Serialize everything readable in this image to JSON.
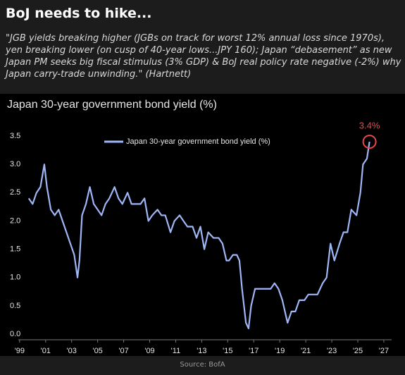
{
  "header": {
    "title": "BoJ needs to hike...",
    "quote": "\"JGB yields breaking higher (JGBs on track for worst 12% annual loss since 1970s), yen breaking lower (on cusp of 40-year lows...JPY 160); Japan “debasement” as new Japan PM seeks big fiscal stimulus (3% GDP) & BoJ real policy rate negative (-2%) why Japan carry-trade unwinding.\" (Hartnett)"
  },
  "source": "Source: BofA",
  "chart_data": {
    "type": "line",
    "title": "Japan 30-year government bond yield (%)",
    "annotation": "3.4%",
    "x": [
      1999.7,
      2000.0,
      2000.3,
      2000.6,
      2000.9,
      2001.1,
      2001.4,
      2001.7,
      2002.0,
      2002.3,
      2002.6,
      2002.9,
      2003.2,
      2003.45,
      2003.6,
      2003.8,
      2004.1,
      2004.4,
      2004.7,
      2005.0,
      2005.3,
      2005.6,
      2005.9,
      2006.3,
      2006.6,
      2006.9,
      2007.3,
      2007.6,
      2007.9,
      2008.3,
      2008.6,
      2008.9,
      2009.2,
      2009.6,
      2009.9,
      2010.2,
      2010.6,
      2010.9,
      2011.3,
      2011.6,
      2011.9,
      2012.3,
      2012.6,
      2012.9,
      2013.2,
      2013.5,
      2013.9,
      2014.3,
      2014.6,
      2014.9,
      2015.1,
      2015.4,
      2015.7,
      2015.9,
      2016.1,
      2016.4,
      2016.6,
      2016.8,
      2017.1,
      2017.5,
      2017.9,
      2018.3,
      2018.6,
      2018.9,
      2019.2,
      2019.6,
      2019.9,
      2020.2,
      2020.5,
      2020.9,
      2021.2,
      2021.6,
      2021.9,
      2022.3,
      2022.6,
      2022.9,
      2023.2,
      2023.6,
      2023.9,
      2024.2,
      2024.5,
      2024.9,
      2025.2,
      2025.4,
      2025.7,
      2025.9
    ],
    "series": [
      {
        "name": "Japan 30-year government bond yield (%)",
        "color": "#9fb6f7",
        "values": [
          2.4,
          2.3,
          2.5,
          2.6,
          3.0,
          2.6,
          2.2,
          2.1,
          2.2,
          2.0,
          1.8,
          1.6,
          1.4,
          1.0,
          1.3,
          2.1,
          2.3,
          2.6,
          2.3,
          2.2,
          2.1,
          2.3,
          2.4,
          2.6,
          2.4,
          2.3,
          2.5,
          2.3,
          2.3,
          2.3,
          2.4,
          2.0,
          2.1,
          2.2,
          2.1,
          2.1,
          1.8,
          2.0,
          2.1,
          2.0,
          1.9,
          1.9,
          1.7,
          1.9,
          1.5,
          1.8,
          1.7,
          1.7,
          1.6,
          1.3,
          1.3,
          1.4,
          1.4,
          1.3,
          0.8,
          0.2,
          0.1,
          0.5,
          0.8,
          0.8,
          0.8,
          0.8,
          0.9,
          0.8,
          0.6,
          0.2,
          0.4,
          0.4,
          0.6,
          0.6,
          0.7,
          0.7,
          0.7,
          0.9,
          1.0,
          1.6,
          1.3,
          1.6,
          1.8,
          1.8,
          2.2,
          2.1,
          2.5,
          3.0,
          3.1,
          3.4
        ]
      }
    ],
    "highlight_color": "#e8474c",
    "xlim": [
      1998.9,
      2027.6
    ],
    "xticks": [
      {
        "value": 1999,
        "label": "'99"
      },
      {
        "value": 2001,
        "label": "'01"
      },
      {
        "value": 2003,
        "label": "'03"
      },
      {
        "value": 2005,
        "label": "'05"
      },
      {
        "value": 2007,
        "label": "'07"
      },
      {
        "value": 2009,
        "label": "'09"
      },
      {
        "value": 2011,
        "label": "'11"
      },
      {
        "value": 2013,
        "label": "'13"
      },
      {
        "value": 2015,
        "label": "'15"
      },
      {
        "value": 2017,
        "label": "'17"
      },
      {
        "value": 2019,
        "label": "'19"
      },
      {
        "value": 2021,
        "label": "'21"
      },
      {
        "value": 2023,
        "label": "'23"
      },
      {
        "value": 2025,
        "label": "'25"
      },
      {
        "value": 2027,
        "label": "'27"
      }
    ],
    "ylim": [
      0,
      3.7
    ],
    "yticks": [
      {
        "value": 0,
        "label": "0.0"
      },
      0.5,
      {
        "value": 1,
        "label": "1.0"
      },
      1.5,
      {
        "value": 2,
        "label": "2.0"
      },
      2.5,
      {
        "value": 3,
        "label": "3.0"
      },
      3.5
    ],
    "legend": "top-left",
    "grid": false
  }
}
